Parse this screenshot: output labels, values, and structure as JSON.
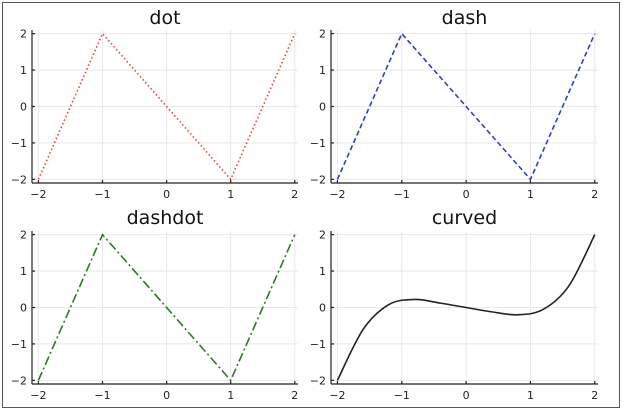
{
  "chart_data": [
    {
      "type": "line",
      "title": "dot",
      "x": [
        -2,
        -1,
        1,
        2
      ],
      "y": [
        -2,
        2,
        -2,
        2
      ],
      "line_style": "dotted",
      "color": "#e8413a",
      "xlim": [
        -2.1,
        2.05
      ],
      "ylim": [
        -2.1,
        2.1
      ],
      "xticks": [
        "−2",
        "−1",
        "0",
        "1",
        "2"
      ],
      "yticks": [
        "2",
        "1",
        "0",
        "−1",
        "−2"
      ],
      "grid": true
    },
    {
      "type": "line",
      "title": "dash",
      "x": [
        -2,
        -1,
        1,
        2
      ],
      "y": [
        -2,
        2,
        -2,
        2
      ],
      "line_style": "dashed",
      "color": "#2f3bd6",
      "xlim": [
        -2.1,
        2.05
      ],
      "ylim": [
        -2.1,
        2.1
      ],
      "xticks": [
        "−2",
        "−1",
        "0",
        "1",
        "2"
      ],
      "yticks": [
        "2",
        "1",
        "0",
        "−1",
        "−2"
      ],
      "grid": true
    },
    {
      "type": "line",
      "title": "dashdot",
      "x": [
        -2,
        -1,
        1,
        2
      ],
      "y": [
        -2,
        2,
        -2,
        2
      ],
      "line_style": "dashdot",
      "color": "#2c7a23",
      "xlim": [
        -2.1,
        2.05
      ],
      "ylim": [
        -2.1,
        2.1
      ],
      "xticks": [
        "−2",
        "−1",
        "0",
        "1",
        "2"
      ],
      "yticks": [
        "2",
        "1",
        "0",
        "−1",
        "−2"
      ],
      "grid": true
    },
    {
      "type": "line",
      "title": "curved",
      "x": [
        -2,
        -1.6,
        -1.2,
        -0.8,
        -0.4,
        0,
        0.4,
        0.8,
        1.2,
        1.6,
        2
      ],
      "y": [
        -2,
        -0.6,
        0.08,
        0.22,
        0.12,
        0,
        -0.12,
        -0.2,
        -0.05,
        0.6,
        2
      ],
      "line_style": "solid",
      "smooth": true,
      "color": "#222222",
      "xlim": [
        -2.1,
        2.05
      ],
      "ylim": [
        -2.1,
        2.1
      ],
      "xticks": [
        "−2",
        "−1",
        "0",
        "1",
        "2"
      ],
      "yticks": [
        "2",
        "1",
        "0",
        "−1",
        "−2"
      ],
      "grid": true
    }
  ]
}
